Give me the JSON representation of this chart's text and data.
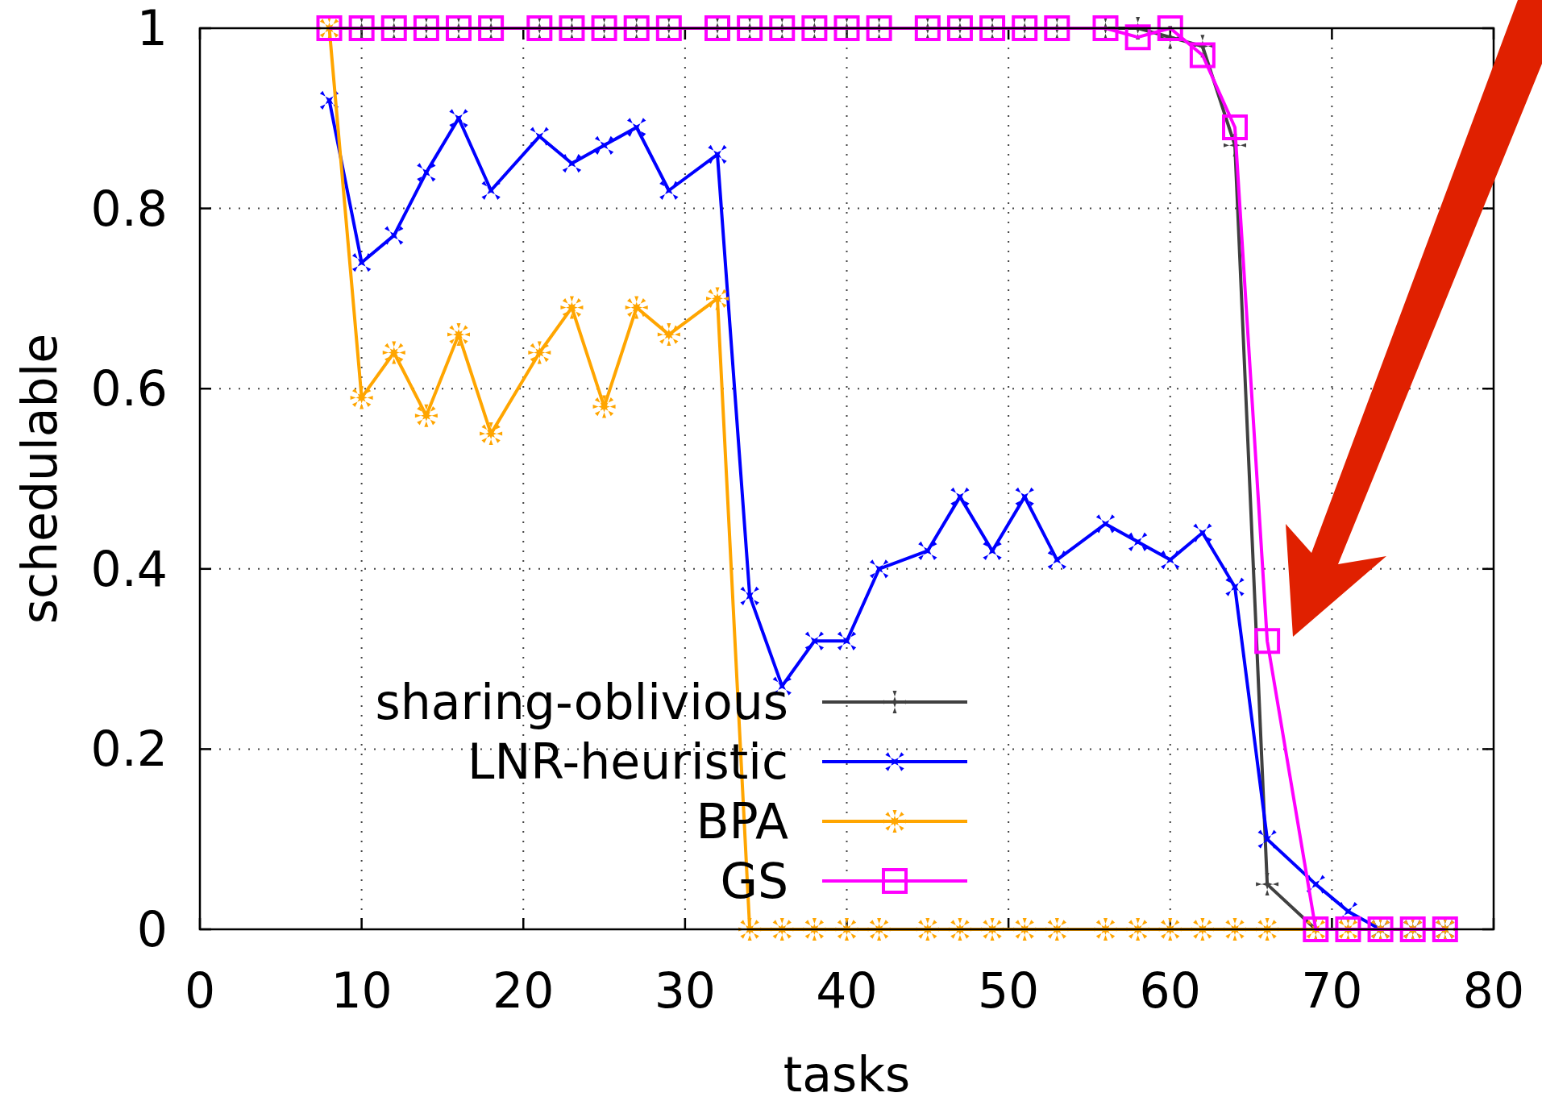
{
  "chart_data": {
    "type": "line",
    "xlabel": "tasks",
    "ylabel": "schedulable",
    "x": [
      8,
      10,
      12,
      14,
      16,
      18,
      21,
      23,
      25,
      27,
      29,
      32,
      34,
      36,
      38,
      40,
      42,
      45,
      47,
      49,
      51,
      53,
      56,
      58,
      60,
      62,
      64,
      66,
      69,
      71,
      73,
      75,
      77
    ],
    "series": [
      {
        "name": "sharing-oblivious",
        "color": "#404040",
        "marker": "cross",
        "values": [
          null,
          1,
          1,
          1,
          1,
          1,
          1,
          1,
          1,
          1,
          1,
          1,
          1,
          1,
          1,
          1,
          1,
          1,
          1,
          1,
          1,
          1,
          1,
          1,
          0.99,
          0.98,
          0.87,
          0.05,
          0,
          0,
          0,
          0,
          0
        ]
      },
      {
        "name": "LNR-heuristic",
        "color": "#0000ff",
        "marker": "cross",
        "values": [
          0.92,
          0.74,
          0.77,
          0.84,
          0.9,
          0.82,
          0.88,
          0.85,
          0.87,
          0.89,
          0.82,
          0.86,
          0.37,
          0.27,
          0.32,
          0.32,
          0.4,
          0.42,
          0.48,
          0.42,
          0.48,
          0.41,
          0.45,
          0.43,
          0.41,
          0.44,
          0.38,
          0.1,
          0.05,
          0.02,
          0,
          0,
          0
        ]
      },
      {
        "name": "BPA",
        "color": "#ffa500",
        "marker": "star",
        "values": [
          1,
          0.59,
          0.64,
          0.57,
          0.66,
          0.55,
          0.64,
          0.69,
          0.58,
          0.69,
          0.66,
          0.7,
          0,
          0,
          0,
          0,
          0,
          0,
          0,
          0,
          0,
          0,
          0,
          0,
          0,
          0,
          0,
          0,
          0,
          0,
          0,
          0,
          0
        ]
      },
      {
        "name": "GS",
        "color": "#ff00ff",
        "marker": "square",
        "values": [
          1,
          1,
          1,
          1,
          1,
          1,
          1,
          1,
          1,
          1,
          1,
          1,
          1,
          1,
          1,
          1,
          1,
          1,
          1,
          1,
          1,
          1,
          1,
          0.99,
          1,
          0.97,
          0.89,
          0.32,
          0,
          0,
          0,
          0,
          0
        ]
      }
    ],
    "xlim": [
      0,
      80
    ],
    "xticks": [
      0,
      10,
      20,
      30,
      40,
      50,
      60,
      70,
      80
    ],
    "ylim": [
      0,
      1
    ],
    "yticks": [
      0,
      0.2,
      0.4,
      0.6,
      0.8,
      1
    ],
    "grid": true,
    "legend": "bottom",
    "line_style": "solid"
  }
}
